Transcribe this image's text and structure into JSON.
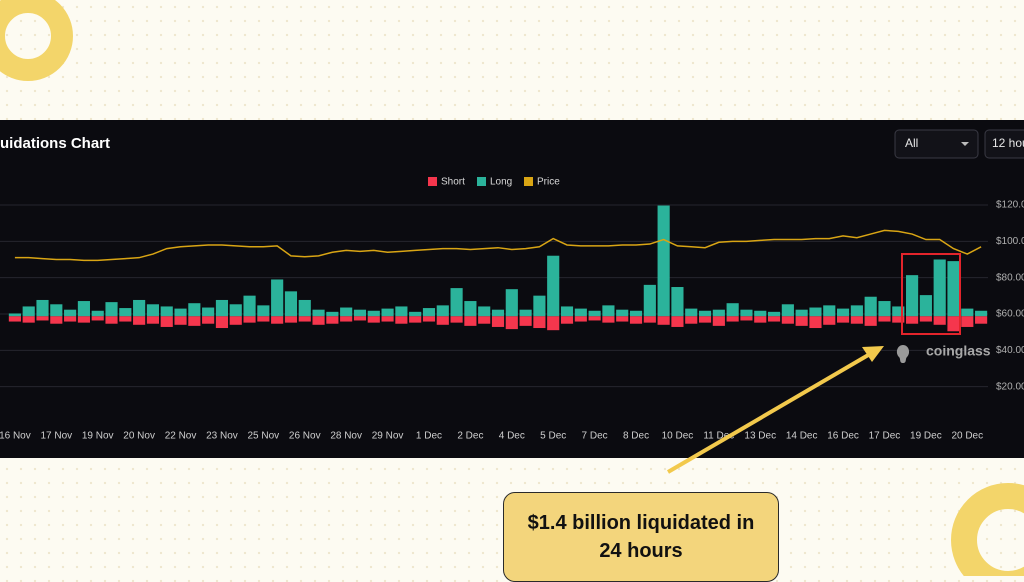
{
  "header": {
    "title": "uidations Chart",
    "filter": "All",
    "interval": "12 hou"
  },
  "chart_data": {
    "type": "bar",
    "stacked": true,
    "categories": [
      "16 Nov",
      null,
      null,
      "17 Nov",
      null,
      null,
      "19 Nov",
      null,
      null,
      "20 Nov",
      null,
      null,
      "22 Nov",
      null,
      null,
      "23 Nov",
      null,
      null,
      "25 Nov",
      null,
      null,
      "26 Nov",
      null,
      null,
      "28 Nov",
      null,
      null,
      "29 Nov",
      null,
      null,
      "1 Dec",
      null,
      null,
      "2 Dec",
      null,
      null,
      "4 Dec",
      null,
      null,
      "5 Dec",
      null,
      null,
      "7 Dec",
      null,
      null,
      "8 Dec",
      null,
      null,
      "10 Dec",
      null,
      null,
      "11 Dec",
      null,
      null,
      "13 Dec",
      null,
      null,
      "14 Dec",
      null,
      null,
      "16 Dec",
      null,
      null,
      "17 Dec",
      null,
      null,
      "19 Dec",
      null,
      null,
      "20 Dec",
      null
    ],
    "series": [
      {
        "name": "Short",
        "color": "#f5364d",
        "values": [
          -10,
          -12,
          -8,
          -14,
          -10,
          -12,
          -8,
          -14,
          -10,
          -16,
          -14,
          -20,
          -16,
          -18,
          -14,
          -22,
          -16,
          -12,
          -10,
          -14,
          -12,
          -10,
          -16,
          -14,
          -10,
          -8,
          -12,
          -10,
          -14,
          -12,
          -10,
          -16,
          -12,
          -18,
          -14,
          -20,
          -24,
          -18,
          -22,
          -26,
          -14,
          -10,
          -8,
          -12,
          -10,
          -14,
          -12,
          -16,
          -20,
          -14,
          -12,
          -18,
          -10,
          -8,
          -12,
          -10,
          -14,
          -18,
          -22,
          -16,
          -12,
          -14,
          -18,
          -10,
          -12,
          -14,
          -10,
          -16,
          -28,
          -20,
          -14
        ]
      },
      {
        "name": "Long",
        "color": "#2bb39b",
        "values": [
          5,
          18,
          30,
          22,
          12,
          28,
          10,
          26,
          15,
          30,
          22,
          18,
          14,
          24,
          16,
          30,
          22,
          38,
          20,
          68,
          46,
          30,
          12,
          8,
          16,
          12,
          10,
          14,
          18,
          8,
          15,
          20,
          52,
          28,
          18,
          12,
          50,
          12,
          38,
          112,
          18,
          14,
          10,
          20,
          12,
          10,
          58,
          205,
          54,
          14,
          10,
          12,
          24,
          12,
          10,
          8,
          22,
          12,
          16,
          20,
          14,
          20,
          36,
          28,
          18,
          76,
          39,
          105,
          102,
          14,
          10
        ]
      },
      {
        "name": "Price",
        "color": "#d9a514",
        "type": "line",
        "axis": "y2",
        "values": [
          91,
          91,
          90.5,
          90,
          90,
          89.5,
          89.5,
          90,
          90.5,
          91,
          93,
          96,
          97,
          97.5,
          98,
          98,
          97.5,
          97,
          97,
          97.5,
          92,
          91.5,
          92,
          94,
          95,
          94.5,
          95,
          94,
          94.5,
          95,
          95.5,
          96,
          96,
          95.5,
          96,
          96.5,
          95.5,
          96,
          97,
          101.5,
          98,
          97.5,
          97.5,
          97.5,
          98,
          98,
          98.5,
          101,
          97.5,
          97,
          96.5,
          99.5,
          100,
          100,
          100.5,
          101,
          101,
          101,
          101.5,
          101.5,
          103,
          102,
          104,
          106,
          105.5,
          104,
          101,
          101,
          96,
          93,
          97
        ]
      }
    ],
    "ylim": [
      -198,
      206
    ],
    "y2lim": [
      0,
      120
    ],
    "y2ticks": [
      {
        "value": 20,
        "label": "$20.00"
      },
      {
        "value": 40,
        "label": "$40.00"
      },
      {
        "value": 60,
        "label": "$60.00"
      },
      {
        "value": 80,
        "label": "$80.00"
      },
      {
        "value": 100,
        "label": "$100.0"
      },
      {
        "value": 120,
        "label": "$120.0"
      }
    ],
    "grid": true
  },
  "watermark": "coinglass",
  "callout": "$1.4 billion liquidated in 24 hours"
}
